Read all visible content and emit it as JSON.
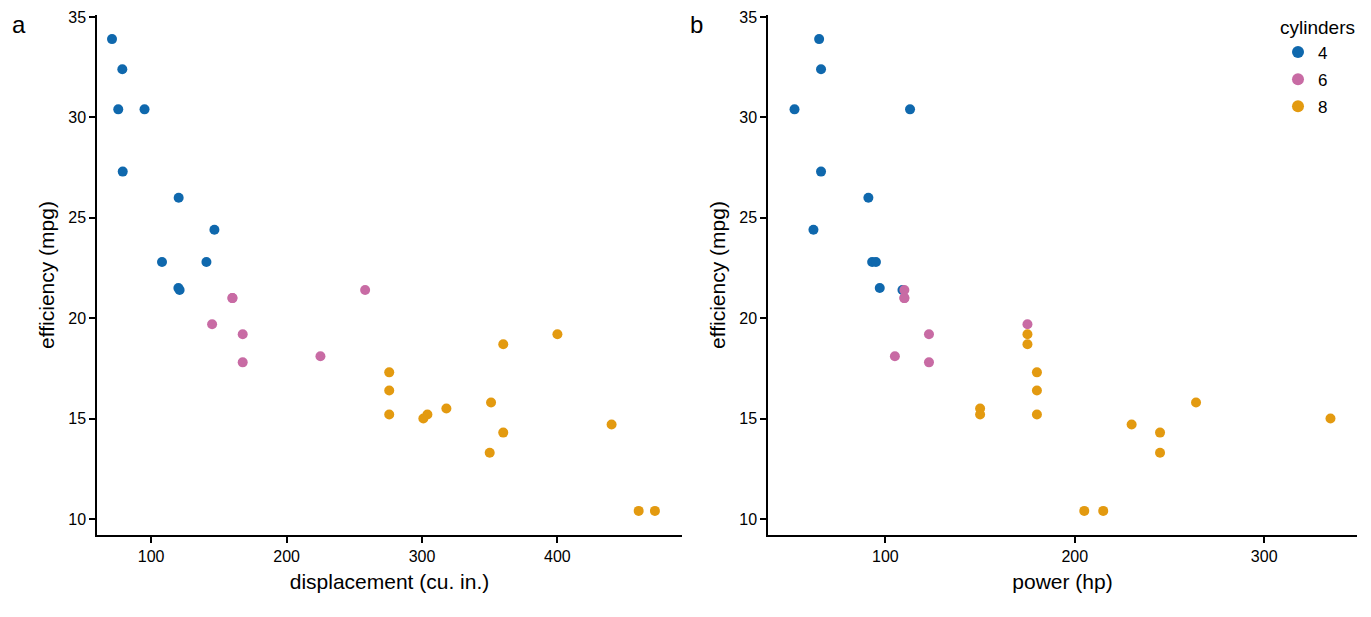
{
  "chart_data": [
    {
      "type": "scatter",
      "title": "a",
      "x_label": "displacement (cu. in.)",
      "y_label": "efficiency (mpg)",
      "xlim": [
        60,
        492
      ],
      "xticks": [
        100,
        200,
        300,
        400
      ],
      "ylim": [
        9.2,
        35.1
      ],
      "yticks": [
        10,
        15,
        20,
        25,
        30,
        35
      ],
      "grid": false,
      "series": [
        {
          "name": "4",
          "color": "#0F68AD",
          "x": [
            108,
            146.7,
            140.8,
            78.7,
            75.7,
            71.1,
            120.1,
            79,
            120.3,
            95.1,
            121
          ],
          "values": [
            22.8,
            24.4,
            22.8,
            32.4,
            30.4,
            33.9,
            21.5,
            27.3,
            26.0,
            30.4,
            21.4
          ]
        },
        {
          "name": "6",
          "color": "#C86BA4",
          "x": [
            160,
            160,
            258,
            225,
            167.6,
            167.6,
            145
          ],
          "values": [
            21.0,
            21.0,
            21.4,
            18.1,
            19.2,
            17.8,
            19.7
          ]
        },
        {
          "name": "8",
          "color": "#E39A10",
          "x": [
            360,
            360,
            275.8,
            275.8,
            275.8,
            472,
            460,
            440,
            318,
            304,
            350,
            400,
            351,
            301
          ],
          "values": [
            18.7,
            14.3,
            16.4,
            17.3,
            15.2,
            10.4,
            10.4,
            14.7,
            15.5,
            15.2,
            13.3,
            19.2,
            15.8,
            15.0
          ]
        }
      ]
    },
    {
      "type": "scatter",
      "title": "b",
      "x_label": "power (hp)",
      "y_label": "efficiency (mpg)",
      "xlim": [
        38,
        349
      ],
      "xticks": [
        100,
        200,
        300
      ],
      "ylim": [
        9.2,
        35.1
      ],
      "yticks": [
        10,
        15,
        20,
        25,
        30,
        35
      ],
      "grid": false,
      "legend": "top right",
      "legend_title": "cylinders",
      "series": [
        {
          "name": "4",
          "color": "#0F68AD",
          "x": [
            93,
            62,
            95,
            66,
            52,
            65,
            97,
            66,
            91,
            113,
            109
          ],
          "values": [
            22.8,
            24.4,
            22.8,
            32.4,
            30.4,
            33.9,
            21.5,
            27.3,
            26.0,
            30.4,
            21.4
          ]
        },
        {
          "name": "6",
          "color": "#C86BA4",
          "x": [
            110,
            110,
            110,
            105,
            123,
            123,
            175
          ],
          "values": [
            21.0,
            21.0,
            21.4,
            18.1,
            19.2,
            17.8,
            19.7
          ]
        },
        {
          "name": "8",
          "color": "#E39A10",
          "x": [
            175,
            245,
            180,
            180,
            180,
            205,
            215,
            230,
            150,
            150,
            245,
            175,
            264,
            335
          ],
          "values": [
            18.7,
            14.3,
            16.4,
            17.3,
            15.2,
            10.4,
            10.4,
            14.7,
            15.5,
            15.2,
            13.3,
            19.2,
            15.8,
            15.0
          ]
        }
      ]
    }
  ]
}
